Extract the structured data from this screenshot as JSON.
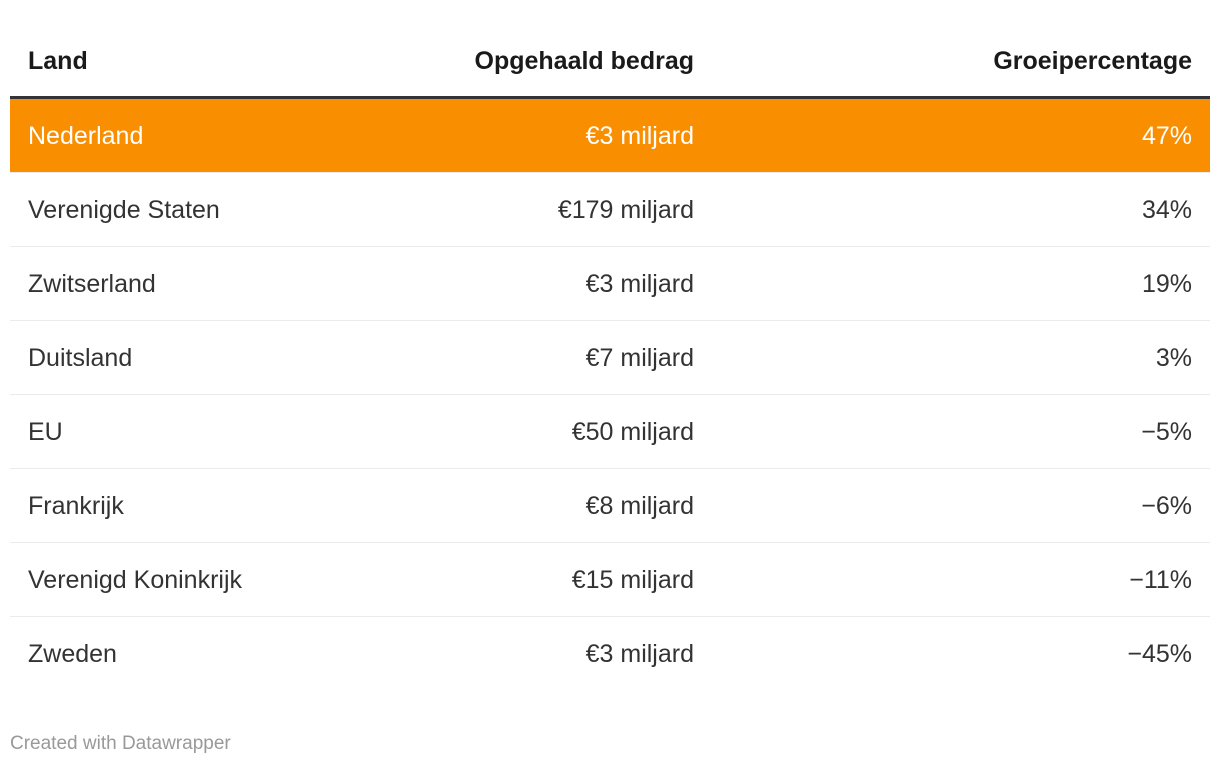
{
  "chart_data": {
    "type": "table",
    "title": "",
    "columns": [
      "Land",
      "Opgehaald bedrag",
      "Groeipercentage"
    ],
    "rows": [
      [
        "Nederland",
        "€3 miljard",
        "47%"
      ],
      [
        "Verenigde Staten",
        "€179 miljard",
        "34%"
      ],
      [
        "Zwitserland",
        "€3 miljard",
        "19%"
      ],
      [
        "Duitsland",
        "€7 miljard",
        "3%"
      ],
      [
        "EU",
        "€50 miljard",
        "−5%"
      ],
      [
        "Frankrijk",
        "€8 miljard",
        "−6%"
      ],
      [
        "Verenigd Koninkrijk",
        "€15 miljard",
        "−11%"
      ],
      [
        "Zweden",
        "€3 miljard",
        "−45%"
      ]
    ],
    "numeric": {
      "opgehaald_bedrag_eur_miljard": [
        3,
        179,
        3,
        7,
        50,
        8,
        15,
        3
      ],
      "groeipercentage_pct": [
        47,
        34,
        19,
        3,
        -5,
        -6,
        -11,
        -45
      ]
    },
    "highlighted_row": "Nederland",
    "column_alignment": [
      "left",
      "right",
      "right"
    ]
  },
  "footer": {
    "credit": "Created with Datawrapper"
  },
  "colors": {
    "highlight_row_bg": "#F98E00",
    "highlight_row_text": "#ffffff",
    "header_rule": "#333333",
    "row_divider": "#ebebeb",
    "header_text": "#1a1a1a",
    "body_text": "#333333",
    "credit_text": "#999999",
    "background": "#ffffff"
  }
}
